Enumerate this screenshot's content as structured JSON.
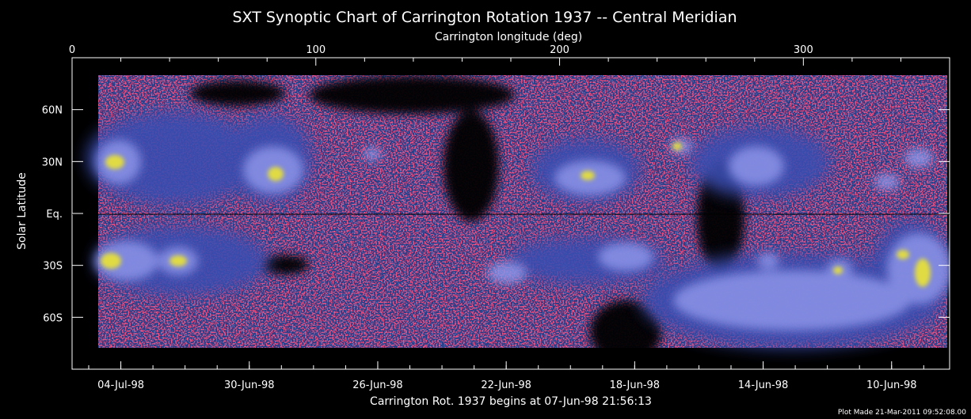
{
  "chart_data": {
    "type": "heatmap",
    "title": "SXT Synoptic Chart of Carrington Rotation 1937 -- Central Meridian",
    "top_axis": {
      "label": "Carrington longitude (deg)",
      "range": [
        0,
        360
      ],
      "ticks": [
        0,
        100,
        200,
        300
      ]
    },
    "y_axis": {
      "label": "Solar Latitude",
      "range": [
        -90,
        90
      ],
      "ticks": [
        {
          "value": 60,
          "label": "60N"
        },
        {
          "value": 30,
          "label": "30N"
        },
        {
          "value": 0,
          "label": "Eq."
        },
        {
          "value": -30,
          "label": "30S"
        },
        {
          "value": -60,
          "label": "60S"
        }
      ]
    },
    "bottom_axis": {
      "ticks": [
        {
          "longitude": 20,
          "label": "04-Jul-98"
        },
        {
          "longitude": 72.7,
          "label": "30-Jun-98"
        },
        {
          "longitude": 125.4,
          "label": "26-Jun-98"
        },
        {
          "longitude": 178.1,
          "label": "22-Jun-98"
        },
        {
          "longitude": 230.8,
          "label": "18-Jun-98"
        },
        {
          "longitude": 283.5,
          "label": "14-Jun-98"
        },
        {
          "longitude": 336.2,
          "label": "10-Jun-98"
        }
      ],
      "label": "Carrington Rot. 1937 begins at 07-Jun-98 21:56:13"
    },
    "equator_line": true,
    "colors": {
      "background": "#000000",
      "quiet": "#1e3a86",
      "corona": "#4a5ec8",
      "noise": "#e8183a",
      "bright": "#a6acf4",
      "hot": "#e8e238"
    }
  },
  "footer": {
    "plot_made": "Plot Made 21-Mar-2011 09:52:08.00"
  }
}
